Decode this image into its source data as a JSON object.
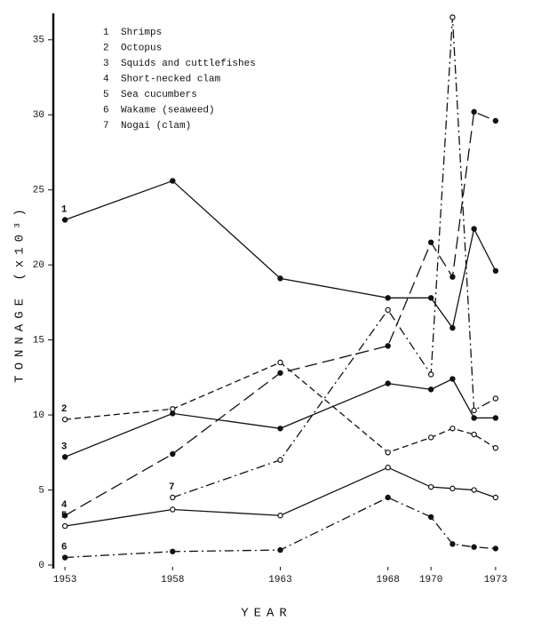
{
  "chart_data": {
    "type": "line",
    "y_label": "TONNAGE (x10³)",
    "x_label": "YEAR",
    "x": [
      1953,
      1958,
      1963,
      1968,
      1970,
      1971,
      1972,
      1973
    ],
    "xlim": [
      1952.5,
      1973.5
    ],
    "xticks": [
      1953,
      1958,
      1963,
      1968,
      1970,
      1973
    ],
    "ylim": [
      0,
      37
    ],
    "yticks": [
      0,
      5,
      10,
      15,
      20,
      25,
      30,
      35
    ],
    "grid": false,
    "series": [
      {
        "number": "1",
        "name": "Shrimps",
        "color": "#111",
        "dash": "solid",
        "marker": "filled",
        "values": [
          23,
          25.6,
          19.1,
          17.8,
          17.8,
          15.8,
          22.4,
          19.6
        ]
      },
      {
        "number": "2",
        "name": "Octopus",
        "color": "#111",
        "dash": "dashed",
        "marker": "open",
        "values": [
          9.7,
          10.4,
          13.5,
          7.5,
          8.5,
          9.1,
          8.7,
          7.8
        ]
      },
      {
        "number": "3",
        "name": "Squids and cuttlefishes",
        "color": "#111",
        "dash": "solid",
        "marker": "filled",
        "values": [
          7.2,
          10.1,
          9.1,
          12.1,
          11.7,
          12.4,
          9.8,
          9.8
        ]
      },
      {
        "number": "4",
        "name": "Short-necked clam",
        "color": "#111",
        "dash": "longdash",
        "marker": "filled",
        "values": [
          3.3,
          7.4,
          12.8,
          14.6,
          21.5,
          19.2,
          30.2,
          29.6
        ]
      },
      {
        "number": "5",
        "name": "Sea cucumbers",
        "color": "#111",
        "dash": "solid",
        "marker": "open",
        "values": [
          2.6,
          3.7,
          3.3,
          6.5,
          5.2,
          5.1,
          5.0,
          4.5
        ]
      },
      {
        "number": "6",
        "name": "Wakame (seaweed)",
        "color": "#111",
        "dash": "dashdot",
        "marker": "filled",
        "values": [
          0.5,
          0.9,
          1.0,
          4.5,
          3.2,
          1.4,
          1.2,
          1.1
        ]
      },
      {
        "number": "7",
        "name": "Nogai (clam)",
        "color": "#111",
        "dash": "dashdot",
        "marker": "open",
        "values": [
          null,
          4.5,
          7.0,
          17.0,
          12.7,
          36.5,
          10.3,
          11.1
        ]
      }
    ]
  }
}
